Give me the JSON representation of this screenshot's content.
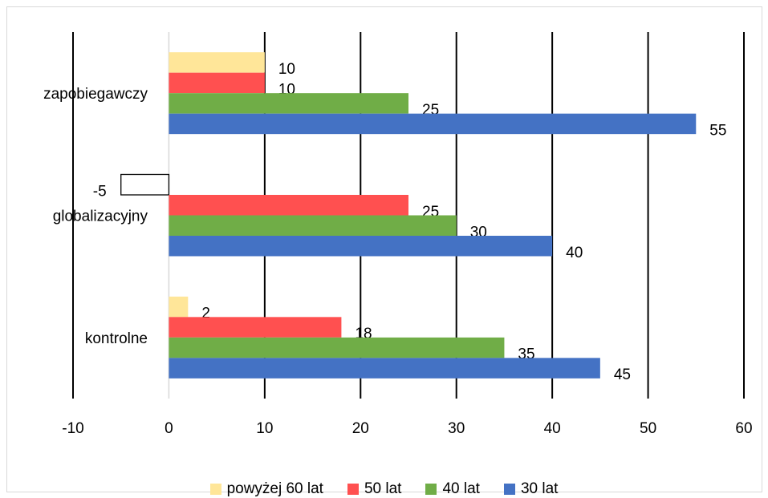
{
  "chart_data": {
    "type": "bar",
    "orientation": "horizontal",
    "categories": [
      "zapobiegawczy",
      "globalizacyjny",
      "kontrolne"
    ],
    "series": [
      {
        "name": "powyżej 60 lat",
        "color": "#FFE699",
        "values": [
          10,
          -5,
          2
        ]
      },
      {
        "name": "50 lat",
        "color": "#FF5050",
        "values": [
          10,
          25,
          18
        ]
      },
      {
        "name": "40 lat",
        "color": "#70AD47",
        "values": [
          25,
          30,
          35
        ]
      },
      {
        "name": "30 lat",
        "color": "#4472C4",
        "values": [
          55,
          40,
          45
        ]
      }
    ],
    "xlim": [
      -10,
      60
    ],
    "xticks": [
      "-10",
      "0",
      "10",
      "20",
      "30",
      "40",
      "50",
      "60"
    ],
    "grid": true,
    "data_labels": true,
    "legend_position": "bottom"
  }
}
